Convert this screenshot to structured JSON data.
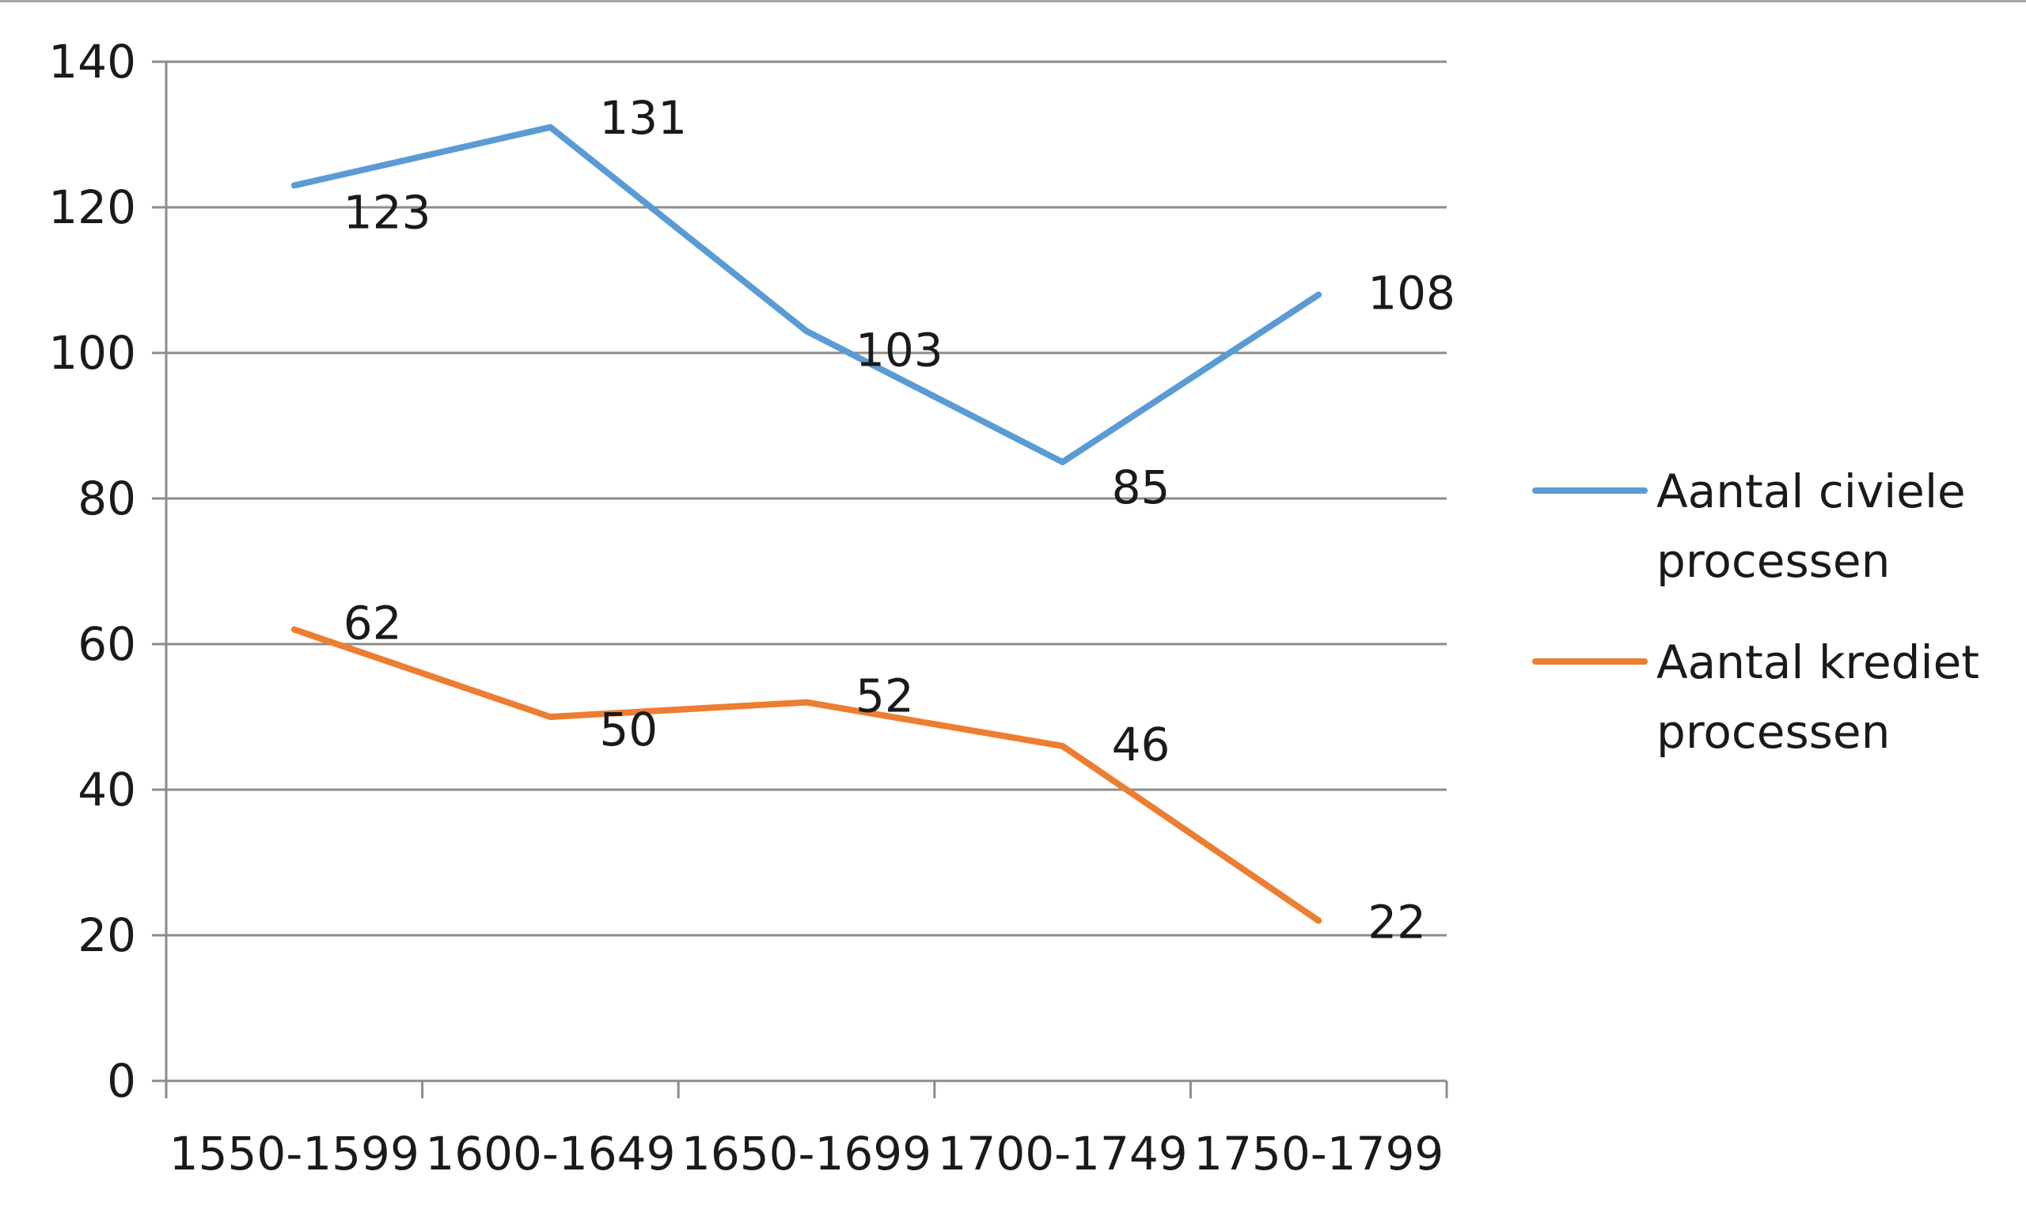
{
  "chart_data": {
    "type": "line",
    "categories": [
      "1550-1599",
      "1600-1649",
      "1650-1699",
      "1700-1749",
      "1750-1799"
    ],
    "ylim": [
      0,
      140
    ],
    "yticks": [
      0,
      20,
      40,
      60,
      80,
      100,
      120,
      140
    ],
    "grid": true,
    "legend_position": "right",
    "series": [
      {
        "name": "Aantal civiele processen",
        "name_lines": [
          "Aantal civiele",
          "processen"
        ],
        "color": "#5b9bd5",
        "values": [
          123,
          131,
          103,
          85,
          108
        ]
      },
      {
        "name": "Aantal krediet processen",
        "name_lines": [
          "Aantal krediet",
          "processen"
        ],
        "color": "#ed7d31",
        "values": [
          62,
          50,
          52,
          46,
          22
        ]
      }
    ]
  }
}
